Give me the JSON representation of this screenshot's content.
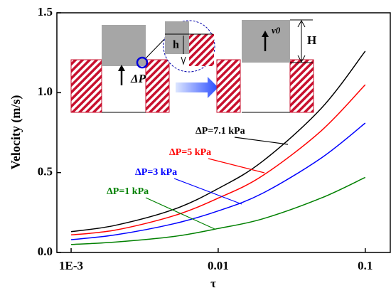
{
  "chart_data": {
    "type": "line",
    "x_label": "τ",
    "y_label": "Velocity (m/s)",
    "log_x": true,
    "xlim": [
      0.0008,
      0.148
    ],
    "ylim": [
      0,
      1.5
    ],
    "xticks": [
      {
        "value": 0.001,
        "label": "1E-3"
      },
      0.01,
      0.1
    ],
    "yticks": [
      {
        "value": 0,
        "label": "0.0"
      },
      0.5,
      {
        "value": 1,
        "label": "1.0"
      },
      1.5
    ],
    "x": [
      0.001,
      0.002,
      0.005,
      0.01,
      0.02,
      0.05,
      0.1
    ],
    "series": [
      {
        "name": "ΔP=7.1 kPa",
        "color": "#000000",
        "values": [
          0.13,
          0.17,
          0.27,
          0.4,
          0.57,
          0.9,
          1.26
        ]
      },
      {
        "name": "ΔP=5 kPa",
        "color": "#ff0000",
        "values": [
          0.11,
          0.14,
          0.23,
          0.34,
          0.48,
          0.76,
          1.05
        ]
      },
      {
        "name": "ΔP=3 kPa",
        "color": "#0000ff",
        "values": [
          0.08,
          0.11,
          0.18,
          0.26,
          0.37,
          0.59,
          0.81
        ]
      },
      {
        "name": "ΔP=1 kPa",
        "color": "#008000",
        "values": [
          0.05,
          0.065,
          0.1,
          0.15,
          0.21,
          0.34,
          0.47
        ]
      }
    ],
    "inset_labels": [
      "ΔP",
      "h",
      "v0",
      "H"
    ]
  }
}
